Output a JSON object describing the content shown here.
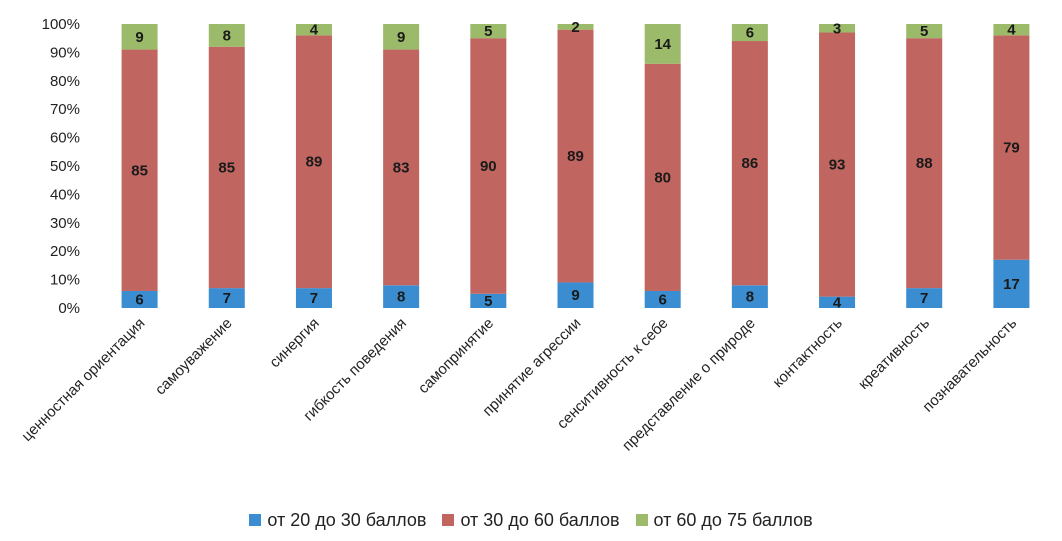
{
  "chart_data": {
    "type": "bar",
    "stacked": true,
    "percent": true,
    "categories": [
      "ценностная ориентация",
      "самоуважение",
      "синергия",
      "гибкость поведения",
      "самопринятие",
      "принятие агрессии",
      "сенситивность к себе",
      "представление о природе",
      "контактность",
      "креативность",
      "познавательность"
    ],
    "series": [
      {
        "name": "от 20 до 30 баллов",
        "color": "#3a8dd0",
        "values": [
          6,
          7,
          7,
          8,
          5,
          9,
          6,
          8,
          4,
          7,
          17
        ]
      },
      {
        "name": "от 30 до 60 баллов",
        "color": "#c0655f",
        "values": [
          85,
          85,
          89,
          83,
          90,
          89,
          80,
          86,
          93,
          88,
          79
        ]
      },
      {
        "name": "от 60 до 75 баллов",
        "color": "#9bbb6a",
        "values": [
          9,
          8,
          4,
          9,
          5,
          2,
          14,
          6,
          3,
          5,
          4
        ]
      }
    ],
    "yticks": [
      "0%",
      "10%",
      "20%",
      "30%",
      "40%",
      "50%",
      "60%",
      "70%",
      "80%",
      "90%",
      "100%"
    ],
    "ylim": [
      0,
      100
    ],
    "legend_position": "bottom",
    "grid": false
  }
}
